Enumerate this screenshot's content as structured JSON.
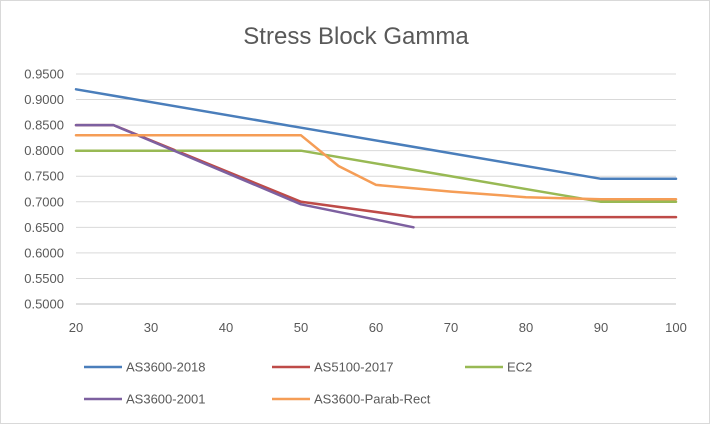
{
  "chart_data": {
    "type": "line",
    "title": "Stress Block Gamma",
    "xlabel": "",
    "ylabel": "",
    "xlim": [
      20,
      100
    ],
    "ylim": [
      0.5,
      0.95
    ],
    "x_ticks": [
      "20",
      "30",
      "40",
      "50",
      "60",
      "70",
      "80",
      "90",
      "100"
    ],
    "y_ticks": [
      "0.5000",
      "0.5500",
      "0.6000",
      "0.6500",
      "0.7000",
      "0.7500",
      "0.8000",
      "0.8500",
      "0.9000",
      "0.9500"
    ],
    "grid": "horizontal",
    "legend_position": "bottom",
    "series": [
      {
        "name": "AS3600-2018",
        "color": "#4a7ebb",
        "points": [
          [
            20,
            0.92
          ],
          [
            50,
            0.845
          ],
          [
            90,
            0.745
          ],
          [
            100,
            0.745
          ]
        ]
      },
      {
        "name": "AS5100-2017",
        "color": "#be4b48",
        "points": [
          [
            20,
            0.85
          ],
          [
            25,
            0.85
          ],
          [
            50,
            0.7
          ],
          [
            65,
            0.67
          ],
          [
            100,
            0.67
          ]
        ]
      },
      {
        "name": "EC2",
        "color": "#98b954",
        "points": [
          [
            20,
            0.8
          ],
          [
            50,
            0.8
          ],
          [
            90,
            0.7
          ],
          [
            100,
            0.7
          ]
        ]
      },
      {
        "name": "AS3600-2001",
        "color": "#7d60a0",
        "points": [
          [
            20,
            0.85
          ],
          [
            25,
            0.85
          ],
          [
            50,
            0.695
          ],
          [
            65,
            0.65
          ]
        ]
      },
      {
        "name": "AS3600-Parab-Rect",
        "color": "#f59d56",
        "points": [
          [
            20,
            0.83
          ],
          [
            50,
            0.83
          ],
          [
            55,
            0.77
          ],
          [
            60,
            0.733
          ],
          [
            70,
            0.72
          ],
          [
            80,
            0.709
          ],
          [
            90,
            0.705
          ],
          [
            100,
            0.705
          ]
        ]
      }
    ]
  }
}
